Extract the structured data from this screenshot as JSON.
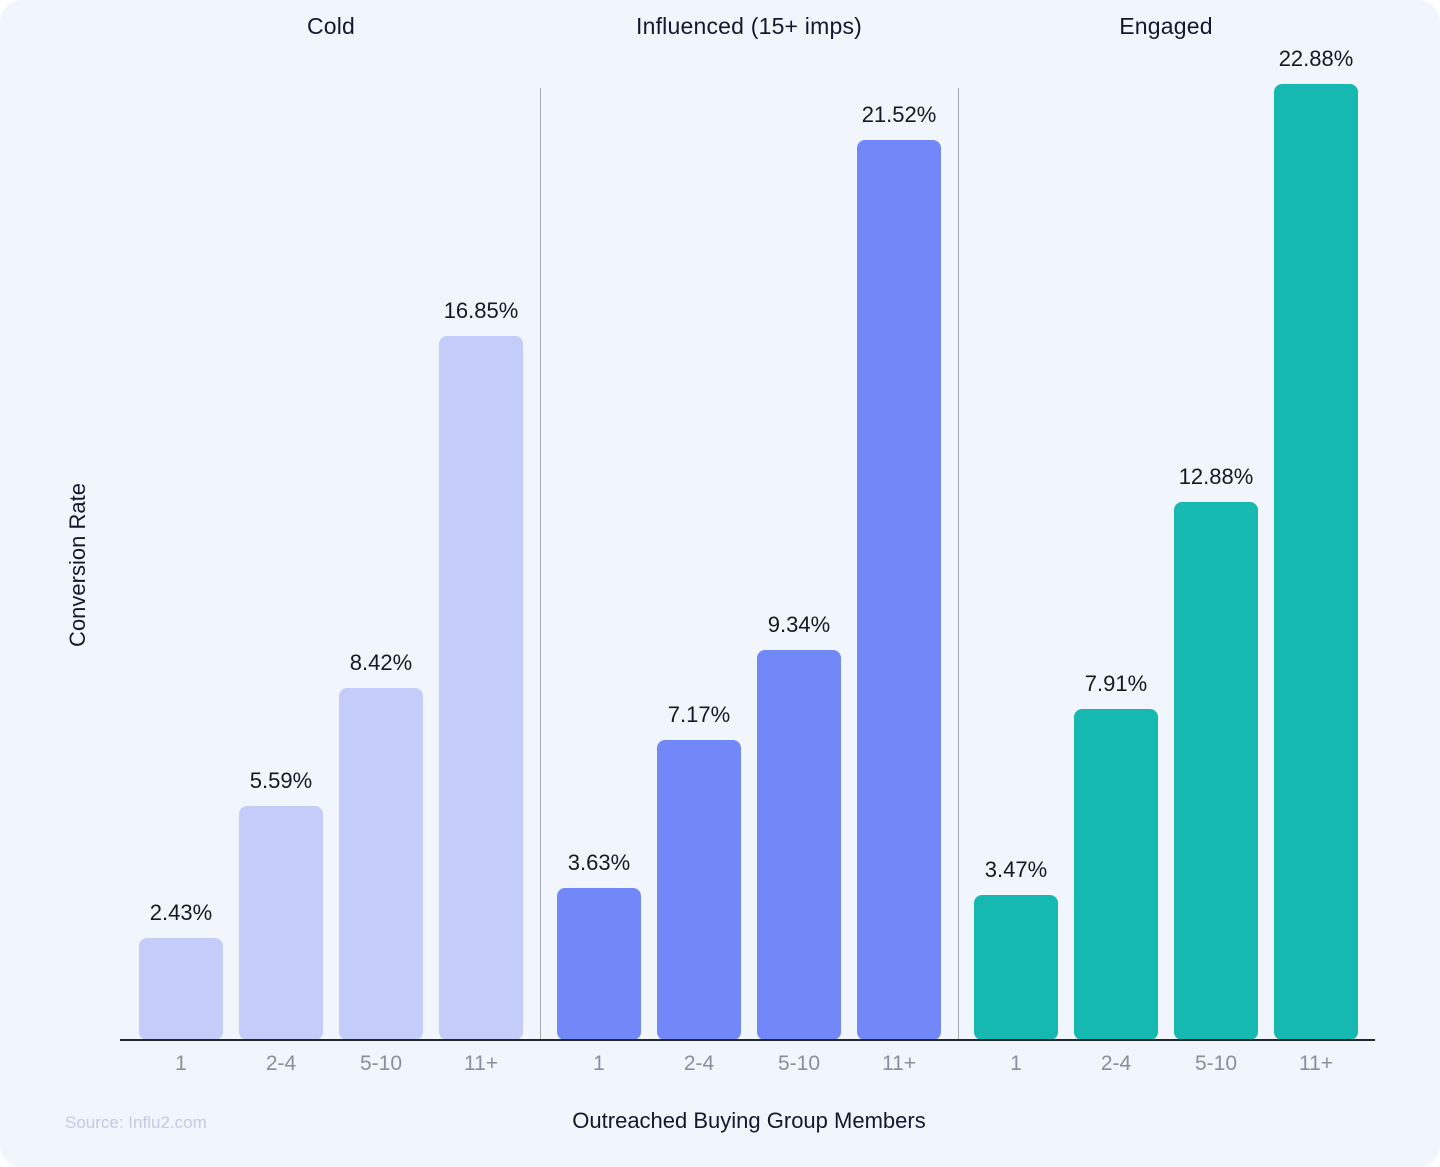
{
  "chart_data": {
    "type": "bar",
    "title": "",
    "xlabel": "Outreached Buying Group Members",
    "ylabel": "Conversion Rate",
    "categories": [
      "1",
      "2-4",
      "5-10",
      "11+"
    ],
    "series": [
      {
        "name": "Cold",
        "color": "#c4cdf9",
        "values": [
          2.43,
          5.59,
          8.42,
          16.85
        ],
        "labels": [
          "2.43%",
          "5.59%",
          "8.42%",
          "16.85%"
        ]
      },
      {
        "name": "Influenced (15+ imps)",
        "color": "#7388f8",
        "values": [
          3.63,
          7.17,
          9.34,
          21.52
        ],
        "labels": [
          "3.63%",
          "7.17%",
          "9.34%",
          "21.52%"
        ]
      },
      {
        "name": "Engaged",
        "color": "#16b9b1",
        "values": [
          3.47,
          7.91,
          12.88,
          22.88
        ],
        "labels": [
          "3.47%",
          "7.91%",
          "12.88%",
          "22.88%"
        ]
      }
    ],
    "ylim": [
      0,
      24
    ],
    "grid": false,
    "legend_position": "none (group names shown as headers above each column group)",
    "layout": "three side-by-side bar groups separated by thin vertical divider lines, value labels above bars, no y-axis ticks"
  },
  "source": {
    "label": "Source: Influ2.com"
  },
  "colors": {
    "background": "#f1f5fc",
    "axis_line": "#26262e",
    "divider": "#a5a7b3",
    "text_dark": "#15172e",
    "text_tick_gray": "#8b8e9c",
    "text_source": "#c4cae6"
  }
}
